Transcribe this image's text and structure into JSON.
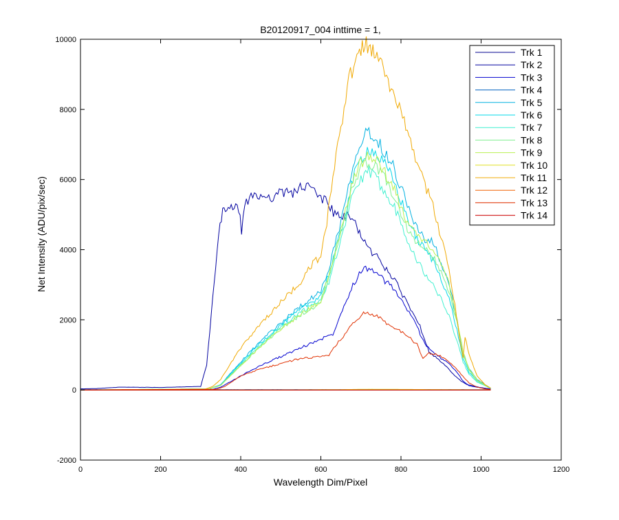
{
  "chart_data": {
    "type": "line",
    "title": "B20120917_004 inttime = 1,",
    "xlabel": "Wavelength Dim/Pixel",
    "ylabel": "Net Intensity (ADU/pix/sec)",
    "xlim": [
      0,
      1200
    ],
    "ylim": [
      -2000,
      10000
    ],
    "xticks": [
      0,
      200,
      400,
      600,
      800,
      1000,
      1200
    ],
    "yticks": [
      -2000,
      0,
      2000,
      4000,
      6000,
      8000,
      10000
    ],
    "grid": false,
    "legend_position": "top-right",
    "series": [
      {
        "name": "Trk 1",
        "color": "#00008f",
        "x": [
          0,
          300,
          1024
        ],
        "y": [
          0,
          0,
          0
        ]
      },
      {
        "name": "Trk 2",
        "color": "#00009f",
        "x": [
          0,
          40,
          100,
          200,
          300,
          315,
          330,
          345,
          355,
          365,
          380,
          395,
          402,
          410,
          430,
          450,
          470,
          500,
          530,
          560,
          580,
          600,
          620,
          635,
          650,
          670,
          690,
          700,
          710,
          720,
          740,
          760,
          780,
          800,
          820,
          840,
          855,
          870,
          890,
          910,
          930,
          950,
          965,
          980,
          1000,
          1024
        ],
        "y": [
          30,
          40,
          80,
          70,
          100,
          700,
          2600,
          4400,
          5100,
          5200,
          5200,
          5150,
          4550,
          5300,
          5500,
          5550,
          5500,
          5600,
          5650,
          5800,
          5700,
          5500,
          5300,
          5000,
          4900,
          4950,
          4700,
          4400,
          4200,
          4000,
          3800,
          3500,
          3200,
          2800,
          2400,
          2000,
          1600,
          1100,
          900,
          700,
          450,
          250,
          150,
          120,
          60,
          30
        ]
      },
      {
        "name": "Trk 3",
        "color": "#0000cf",
        "x": [
          0,
          330,
          350,
          400,
          450,
          500,
          550,
          600,
          630,
          650,
          680,
          700,
          720,
          740,
          760,
          780,
          800,
          820,
          840,
          860,
          880,
          900,
          920,
          940,
          955,
          970,
          990,
          1010,
          1024
        ],
        "y": [
          0,
          20,
          80,
          400,
          700,
          950,
          1200,
          1450,
          1600,
          2200,
          3000,
          3400,
          3500,
          3300,
          3100,
          2900,
          2600,
          2200,
          1800,
          1300,
          1100,
          900,
          750,
          500,
          250,
          120,
          80,
          50,
          20
        ]
      },
      {
        "name": "Trk 4",
        "color": "#0060c0",
        "x": [
          0,
          300,
          1024
        ],
        "y": [
          10,
          10,
          10
        ]
      },
      {
        "name": "Trk 5",
        "color": "#00b0e0",
        "x": [
          0,
          320,
          350,
          400,
          450,
          500,
          550,
          600,
          620,
          650,
          680,
          700,
          720,
          740,
          760,
          780,
          800,
          820,
          840,
          860,
          880,
          900,
          920,
          940,
          955,
          970,
          990,
          1010,
          1024
        ],
        "y": [
          0,
          30,
          150,
          800,
          1400,
          1900,
          2400,
          2800,
          3500,
          4800,
          6500,
          7100,
          7400,
          7100,
          6800,
          6400,
          5800,
          5200,
          4600,
          4300,
          4200,
          3600,
          3000,
          2000,
          1000,
          600,
          300,
          150,
          50
        ]
      },
      {
        "name": "Trk 6",
        "color": "#00d8e8",
        "x": [
          0,
          320,
          350,
          400,
          450,
          500,
          550,
          600,
          620,
          650,
          680,
          700,
          720,
          740,
          760,
          780,
          800,
          820,
          840,
          860,
          880,
          900,
          920,
          940,
          955,
          970,
          990,
          1010,
          1024
        ],
        "y": [
          0,
          30,
          140,
          760,
          1350,
          1850,
          2300,
          2700,
          3300,
          4500,
          6000,
          6600,
          6900,
          6700,
          6400,
          6000,
          5400,
          4800,
          4300,
          4000,
          3700,
          3200,
          2600,
          1700,
          900,
          500,
          250,
          130,
          40
        ]
      },
      {
        "name": "Trk 7",
        "color": "#40f0d0",
        "x": [
          0,
          320,
          350,
          400,
          450,
          500,
          550,
          600,
          620,
          650,
          680,
          700,
          720,
          740,
          760,
          780,
          800,
          820,
          840,
          860,
          880,
          900,
          920,
          940,
          955,
          970,
          990,
          1010,
          1024
        ],
        "y": [
          0,
          30,
          130,
          720,
          1300,
          1800,
          2200,
          2600,
          3100,
          4200,
          5600,
          6000,
          6200,
          6000,
          5700,
          5300,
          4800,
          4200,
          3700,
          3300,
          3000,
          2600,
          2100,
          1400,
          800,
          450,
          220,
          120,
          40
        ]
      },
      {
        "name": "Trk 8",
        "color": "#80f090",
        "x": [
          0,
          320,
          350,
          400,
          450,
          500,
          550,
          600,
          620,
          650,
          680,
          700,
          720,
          740,
          760,
          780,
          800,
          820,
          840,
          860,
          880,
          900,
          920,
          940,
          955,
          970,
          990,
          1010,
          1024
        ],
        "y": [
          0,
          30,
          130,
          700,
          1250,
          1750,
          2150,
          2500,
          3200,
          4400,
          5800,
          6300,
          6500,
          6300,
          6000,
          5600,
          5000,
          4500,
          4200,
          4000,
          3800,
          3400,
          2800,
          1900,
          1000,
          550,
          260,
          130,
          40
        ]
      },
      {
        "name": "Trk 9",
        "color": "#b8f050",
        "x": [
          0,
          320,
          350,
          400,
          450,
          500,
          550,
          600,
          620,
          650,
          680,
          700,
          720,
          740,
          760,
          780,
          800,
          820,
          840,
          860,
          880,
          900,
          920,
          940,
          955,
          970,
          990,
          1010,
          1024
        ],
        "y": [
          0,
          30,
          130,
          700,
          1250,
          1750,
          2150,
          2550,
          3300,
          4500,
          6000,
          6500,
          6700,
          6500,
          6200,
          5800,
          5200,
          4700,
          4400,
          4200,
          4000,
          3600,
          3000,
          2000,
          1100,
          600,
          280,
          140,
          40
        ]
      },
      {
        "name": "Trk 10",
        "color": "#e0e020",
        "x": [
          0,
          500,
          650,
          720,
          900,
          1024
        ],
        "y": [
          0,
          0,
          10,
          20,
          10,
          0
        ]
      },
      {
        "name": "Trk 11",
        "color": "#f0a800",
        "x": [
          0,
          310,
          330,
          350,
          400,
          450,
          500,
          550,
          580,
          600,
          615,
          630,
          650,
          670,
          690,
          700,
          710,
          720,
          730,
          740,
          760,
          780,
          800,
          820,
          840,
          860,
          880,
          900,
          920,
          935,
          945,
          955,
          960,
          970,
          990,
          1010,
          1024
        ],
        "y": [
          0,
          20,
          100,
          300,
          1200,
          1900,
          2500,
          3100,
          3600,
          3800,
          4800,
          6000,
          7500,
          8800,
          9500,
          9800,
          9900,
          9800,
          9600,
          9400,
          9000,
          8500,
          8000,
          7300,
          6500,
          5900,
          5200,
          4400,
          3400,
          2400,
          1600,
          900,
          1500,
          1000,
          400,
          150,
          50
        ]
      },
      {
        "name": "Trk 12",
        "color": "#f06000",
        "x": [
          0,
          500,
          1024
        ],
        "y": [
          0,
          0,
          0
        ]
      },
      {
        "name": "Trk 13",
        "color": "#e03000",
        "x": [
          0,
          340,
          360,
          400,
          450,
          500,
          550,
          600,
          620,
          640,
          660,
          680,
          700,
          710,
          720,
          740,
          760,
          780,
          800,
          820,
          840,
          855,
          870,
          890,
          910,
          930,
          950,
          970,
          990,
          1010,
          1024
        ],
        "y": [
          0,
          20,
          100,
          400,
          600,
          750,
          900,
          950,
          1000,
          1300,
          1600,
          1900,
          2100,
          2200,
          2200,
          2100,
          1950,
          1800,
          1650,
          1500,
          1300,
          900,
          1050,
          1000,
          900,
          700,
          450,
          200,
          80,
          30,
          10
        ]
      },
      {
        "name": "Trk 14",
        "color": "#cc0000",
        "x": [
          0,
          1024
        ],
        "y": [
          0,
          0
        ]
      }
    ]
  }
}
